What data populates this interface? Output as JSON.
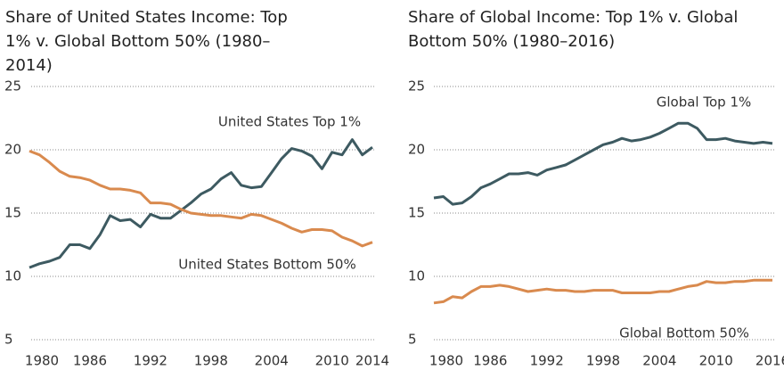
{
  "chart_data": [
    {
      "type": "line",
      "title": "Share of United States Income: Top 1% v. Global Bottom 50% (1980–2014)",
      "x": [
        1980,
        1981,
        1982,
        1983,
        1984,
        1985,
        1986,
        1987,
        1988,
        1989,
        1990,
        1991,
        1992,
        1993,
        1994,
        1995,
        1996,
        1997,
        1998,
        1999,
        2000,
        2001,
        2002,
        2003,
        2004,
        2005,
        2006,
        2007,
        2008,
        2009,
        2010,
        2011,
        2012,
        2013,
        2014
      ],
      "xlim": [
        1980,
        2014
      ],
      "xticks": [
        1980,
        1986,
        1992,
        1998,
        2004,
        2010,
        2014
      ],
      "ylim": [
        5,
        25
      ],
      "yticks": [
        5,
        10,
        15,
        20,
        25
      ],
      "grid": true,
      "series": [
        {
          "name": "United States Top 1%",
          "color": "#3d5a61",
          "values": [
            10.7,
            11.0,
            11.2,
            11.5,
            12.5,
            12.5,
            12.2,
            13.3,
            14.8,
            14.4,
            14.5,
            13.9,
            14.9,
            14.6,
            14.6,
            15.2,
            15.8,
            16.5,
            16.9,
            17.7,
            18.2,
            17.2,
            17.0,
            17.1,
            18.2,
            19.3,
            20.1,
            19.9,
            19.5,
            18.5,
            19.8,
            19.6,
            20.8,
            19.6,
            20.2
          ]
        },
        {
          "name": "United States Bottom 50%",
          "color": "#d98a4e",
          "values": [
            19.9,
            19.6,
            19.0,
            18.3,
            17.9,
            17.8,
            17.6,
            17.2,
            16.9,
            16.9,
            16.8,
            16.6,
            15.8,
            15.8,
            15.7,
            15.3,
            15.0,
            14.9,
            14.8,
            14.8,
            14.7,
            14.6,
            14.9,
            14.8,
            14.5,
            14.2,
            13.8,
            13.5,
            13.7,
            13.7,
            13.6,
            13.1,
            12.8,
            12.4,
            12.7
          ]
        }
      ]
    },
    {
      "type": "line",
      "title": "Share of Global Income: Top 1% v. Global Bottom 50% (1980–2016)",
      "x": [
        1980,
        1981,
        1982,
        1983,
        1984,
        1985,
        1986,
        1987,
        1988,
        1989,
        1990,
        1991,
        1992,
        1993,
        1994,
        1995,
        1996,
        1997,
        1998,
        1999,
        2000,
        2001,
        2002,
        2003,
        2004,
        2005,
        2006,
        2007,
        2008,
        2009,
        2010,
        2011,
        2012,
        2013,
        2014,
        2015,
        2016
      ],
      "xlim": [
        1980,
        2016
      ],
      "xticks": [
        1980,
        1986,
        1992,
        1998,
        2004,
        2010,
        2016
      ],
      "ylim": [
        5,
        25
      ],
      "yticks": [
        5,
        10,
        15,
        20,
        25
      ],
      "grid": true,
      "series": [
        {
          "name": "Global Top 1%",
          "color": "#3d5a61",
          "values": [
            16.2,
            16.3,
            15.7,
            15.8,
            16.3,
            17.0,
            17.3,
            17.7,
            18.1,
            18.1,
            18.2,
            18.0,
            18.4,
            18.6,
            18.8,
            19.2,
            19.6,
            20.0,
            20.4,
            20.6,
            20.9,
            20.7,
            20.8,
            21.0,
            21.3,
            21.7,
            22.1,
            22.1,
            21.7,
            20.8,
            20.8,
            20.9,
            20.7,
            20.6,
            20.5,
            20.6,
            20.5
          ]
        },
        {
          "name": "Global Bottom 50%",
          "color": "#d98a4e",
          "values": [
            7.9,
            8.0,
            8.4,
            8.3,
            8.8,
            9.2,
            9.2,
            9.3,
            9.2,
            9.0,
            8.8,
            8.9,
            9.0,
            8.9,
            8.9,
            8.8,
            8.8,
            8.9,
            8.9,
            8.9,
            8.7,
            8.7,
            8.7,
            8.7,
            8.8,
            8.8,
            9.0,
            9.2,
            9.3,
            9.6,
            9.5,
            9.5,
            9.6,
            9.6,
            9.7,
            9.7,
            9.7
          ]
        }
      ]
    }
  ]
}
